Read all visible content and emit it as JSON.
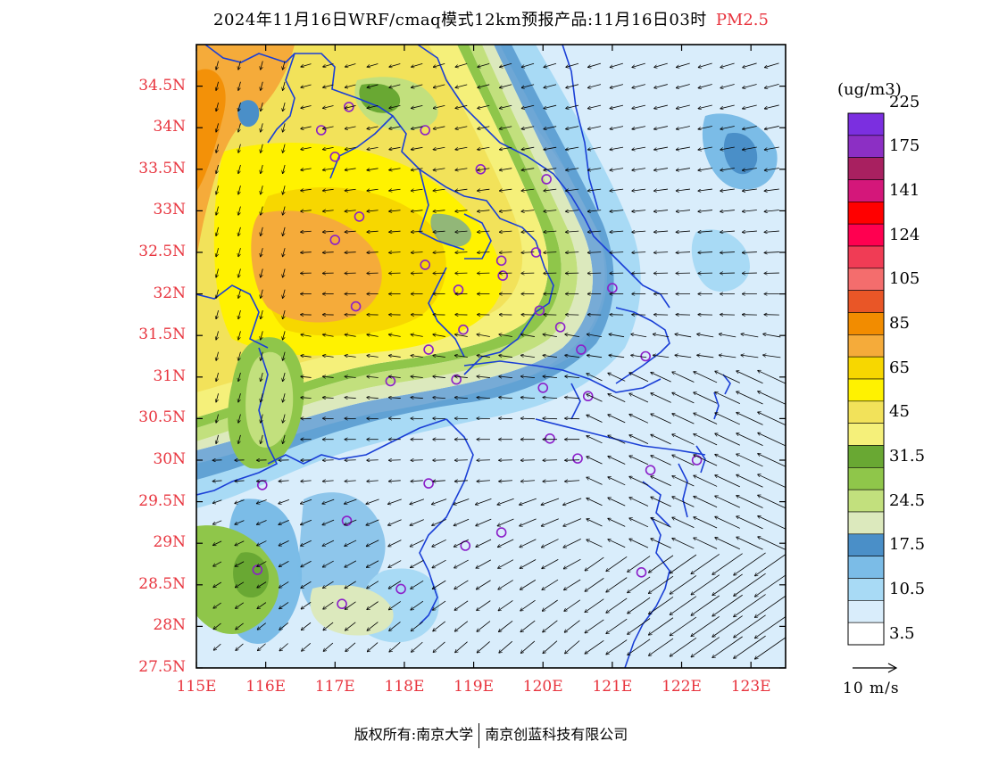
{
  "header": {
    "title": "2024年11月16日WRF/cmaq模式12km预报产品:11月16日03时",
    "pollutant": "PM2.5"
  },
  "map": {
    "lat_ticks": [
      "34.5N",
      "34N",
      "33.5N",
      "33N",
      "32.5N",
      "32N",
      "31.5N",
      "31N",
      "30.5N",
      "30N",
      "29.5N",
      "29N",
      "28.5N",
      "28N",
      "27.5N"
    ],
    "lon_ticks": [
      "115E",
      "116E",
      "117E",
      "118E",
      "119E",
      "120E",
      "121E",
      "122E",
      "123E"
    ],
    "lat_values": [
      34.5,
      34,
      33.5,
      33,
      32.5,
      32,
      31.5,
      31,
      30.5,
      30,
      29.5,
      29,
      28.5,
      28,
      27.5
    ],
    "lon_values": [
      115,
      116,
      117,
      118,
      119,
      120,
      121,
      122,
      123
    ],
    "extent": {
      "lon_min": 115,
      "lon_max": 123.5,
      "lat_min": 27.5,
      "lat_max": 35
    },
    "border_color": "#1a3fd6",
    "station_color": "#8b1fc9",
    "stations": [
      [
        117.2,
        34.25
      ],
      [
        116.8,
        33.97
      ],
      [
        118.3,
        33.97
      ],
      [
        117.0,
        33.65
      ],
      [
        119.1,
        33.5
      ],
      [
        120.05,
        33.38
      ],
      [
        117.35,
        32.93
      ],
      [
        117.0,
        32.65
      ],
      [
        118.3,
        32.35
      ],
      [
        119.4,
        32.4
      ],
      [
        119.9,
        32.5
      ],
      [
        119.42,
        32.22
      ],
      [
        118.78,
        32.05
      ],
      [
        121.0,
        32.07
      ],
      [
        117.3,
        31.85
      ],
      [
        119.95,
        31.8
      ],
      [
        118.85,
        31.57
      ],
      [
        120.25,
        31.6
      ],
      [
        118.35,
        31.33
      ],
      [
        120.55,
        31.33
      ],
      [
        121.48,
        31.25
      ],
      [
        117.8,
        30.95
      ],
      [
        118.75,
        30.97
      ],
      [
        120.0,
        30.87
      ],
      [
        120.65,
        30.77
      ],
      [
        120.1,
        30.26
      ],
      [
        120.5,
        30.02
      ],
      [
        121.55,
        29.88
      ],
      [
        122.22,
        30.0
      ],
      [
        115.95,
        29.7
      ],
      [
        118.35,
        29.72
      ],
      [
        117.17,
        29.27
      ],
      [
        119.4,
        29.13
      ],
      [
        118.88,
        28.97
      ],
      [
        115.88,
        28.68
      ],
      [
        121.42,
        28.65
      ],
      [
        117.95,
        28.45
      ],
      [
        117.1,
        28.27
      ]
    ]
  },
  "legend": {
    "unit": "(ug/m3)",
    "colors": [
      "#ffffff",
      "#d9edfb",
      "#a8daf5",
      "#7bbce7",
      "#4a8fc8",
      "#dce9bd",
      "#c2e07d",
      "#8fc64a",
      "#69a833",
      "#f5f07a",
      "#f2e25a",
      "#fff200",
      "#f7d700",
      "#f5ab3a",
      "#f28c00",
      "#e95627",
      "#f46d6d",
      "#f03c55",
      "#ff0050",
      "#ff0000",
      "#d4177a",
      "#a82060",
      "#8c2fc4",
      "#7b2fe0"
    ],
    "labels": [
      "3.5",
      "10.5",
      "17.5",
      "24.5",
      "31.5",
      "45",
      "65",
      "85",
      "105",
      "124",
      "141",
      "175",
      "225"
    ],
    "wind_ref_label": "10 m/s"
  },
  "footer": {
    "copyright_left": "版权所有:南京大学",
    "copyright_right": "南京创蓝科技有限公司"
  }
}
